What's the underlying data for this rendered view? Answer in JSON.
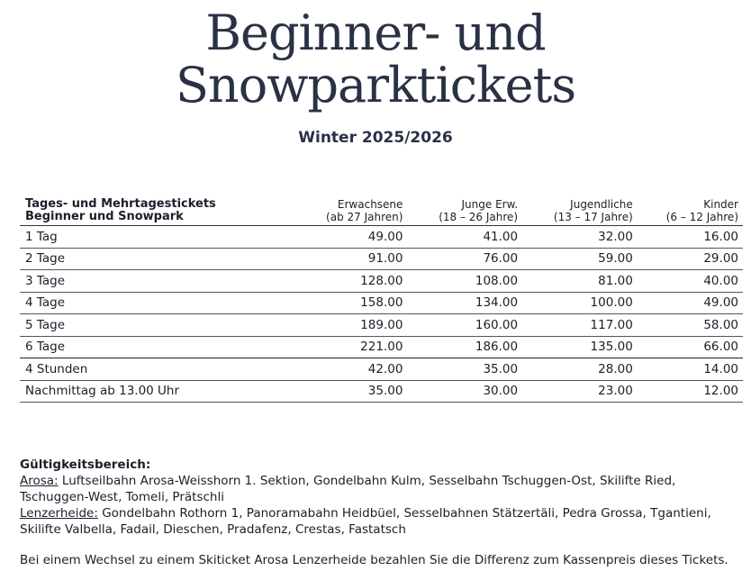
{
  "header": {
    "title_lines": [
      "Beginner- und",
      "Snowparktickets"
    ],
    "subtitle": "Winter 2025/2026"
  },
  "table": {
    "columns": [
      [
        "Tages- und Mehrtagestickets",
        "Beginner und Snowpark"
      ],
      [
        "Erwachsene",
        "(ab 27 Jahren)"
      ],
      [
        "Junge Erw.",
        "(18 – 26 Jahre)"
      ],
      [
        "Jugendliche",
        "(13 – 17 Jahre)"
      ],
      [
        "Kinder",
        "(6 – 12 Jahre)"
      ]
    ],
    "rows": [
      [
        "1 Tag",
        "49.00",
        "41.00",
        "32.00",
        "16.00"
      ],
      [
        "2 Tage",
        "91.00",
        "76.00",
        "59.00",
        "29.00"
      ],
      [
        "3 Tage",
        "128.00",
        "108.00",
        "81.00",
        "40.00"
      ],
      [
        "4 Tage",
        "158.00",
        "134.00",
        "100.00",
        "49.00"
      ],
      [
        "5 Tage",
        "189.00",
        "160.00",
        "117.00",
        "58.00"
      ],
      [
        "6 Tage",
        "221.00",
        "186.00",
        "135.00",
        "66.00"
      ],
      [
        "4 Stunden",
        "42.00",
        "35.00",
        "28.00",
        "14.00"
      ],
      [
        "Nachmittag ab 13.00 Uhr",
        "35.00",
        "30.00",
        "23.00",
        "12.00"
      ]
    ]
  },
  "validity": {
    "heading": "Gültigkeitsbereich:",
    "areas": [
      {
        "name": "Arosa:",
        "lines": [
          "Luftseilbahn Arosa-Weisshorn 1. Sektion, Gondelbahn Kulm, Sesselbahn Tschuggen-Ost, Skilifte Ried,",
          "Tschuggen-West, Tomeli, Prätschli"
        ]
      },
      {
        "name": "Lenzerheide:",
        "lines": [
          "Gondelbahn Rothorn 1, Panoramabahn Heidbüel, Sesselbahnen Stätzertäli, Pedra Grossa, Tgantieni,",
          "Skilifte Valbella, Fadail, Dieschen, Pradafenz, Crestas, Fastatsch"
        ]
      }
    ]
  },
  "note": "Bei einem Wechsel zu einem Skiticket Arosa Lenzerheide bezahlen Sie die Differenz zum Kassenpreis dieses Tickets."
}
